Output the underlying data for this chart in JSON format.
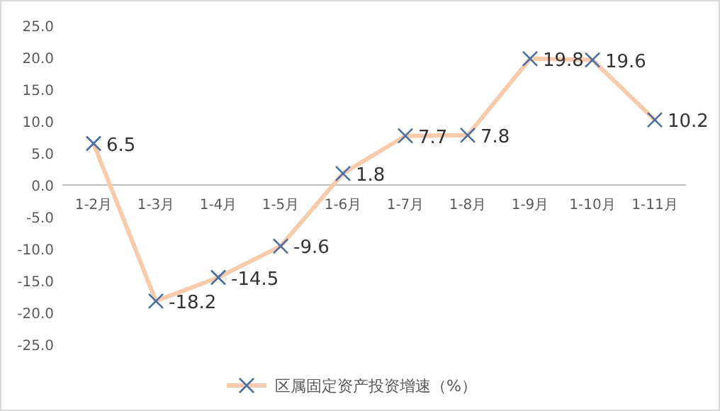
{
  "chart_data": {
    "type": "line",
    "categories": [
      "1-2月",
      "1-3月",
      "1-4月",
      "1-5月",
      "1-6月",
      "1-7月",
      "1-8月",
      "1-9月",
      "1-10月",
      "1-11月"
    ],
    "series": [
      {
        "name": "区属固定资产投资增速（%）",
        "color": "#f8cbad",
        "values": [
          6.5,
          -18.2,
          -14.5,
          -9.6,
          1.8,
          7.7,
          7.8,
          19.8,
          19.6,
          10.2
        ]
      }
    ],
    "ylim": [
      -25,
      25
    ],
    "yticks": [
      {
        "value": -25,
        "label": "-25.0"
      },
      {
        "value": -20,
        "label": "-20.0"
      },
      {
        "value": -15,
        "label": "-15.0"
      },
      {
        "value": -10,
        "label": "-10.0"
      },
      {
        "value": -5,
        "label": "-5.0"
      },
      {
        "value": 0,
        "label": "0.0"
      },
      {
        "value": 5,
        "label": "5.0"
      },
      {
        "value": 10,
        "label": "10.0"
      },
      {
        "value": 15,
        "label": "15.0"
      },
      {
        "value": 20,
        "label": "20.0"
      },
      {
        "value": 25,
        "label": "25.0"
      }
    ],
    "grid": false,
    "legend": "bottom",
    "marker": "cross",
    "line_style": "solid",
    "data_labels": true
  }
}
